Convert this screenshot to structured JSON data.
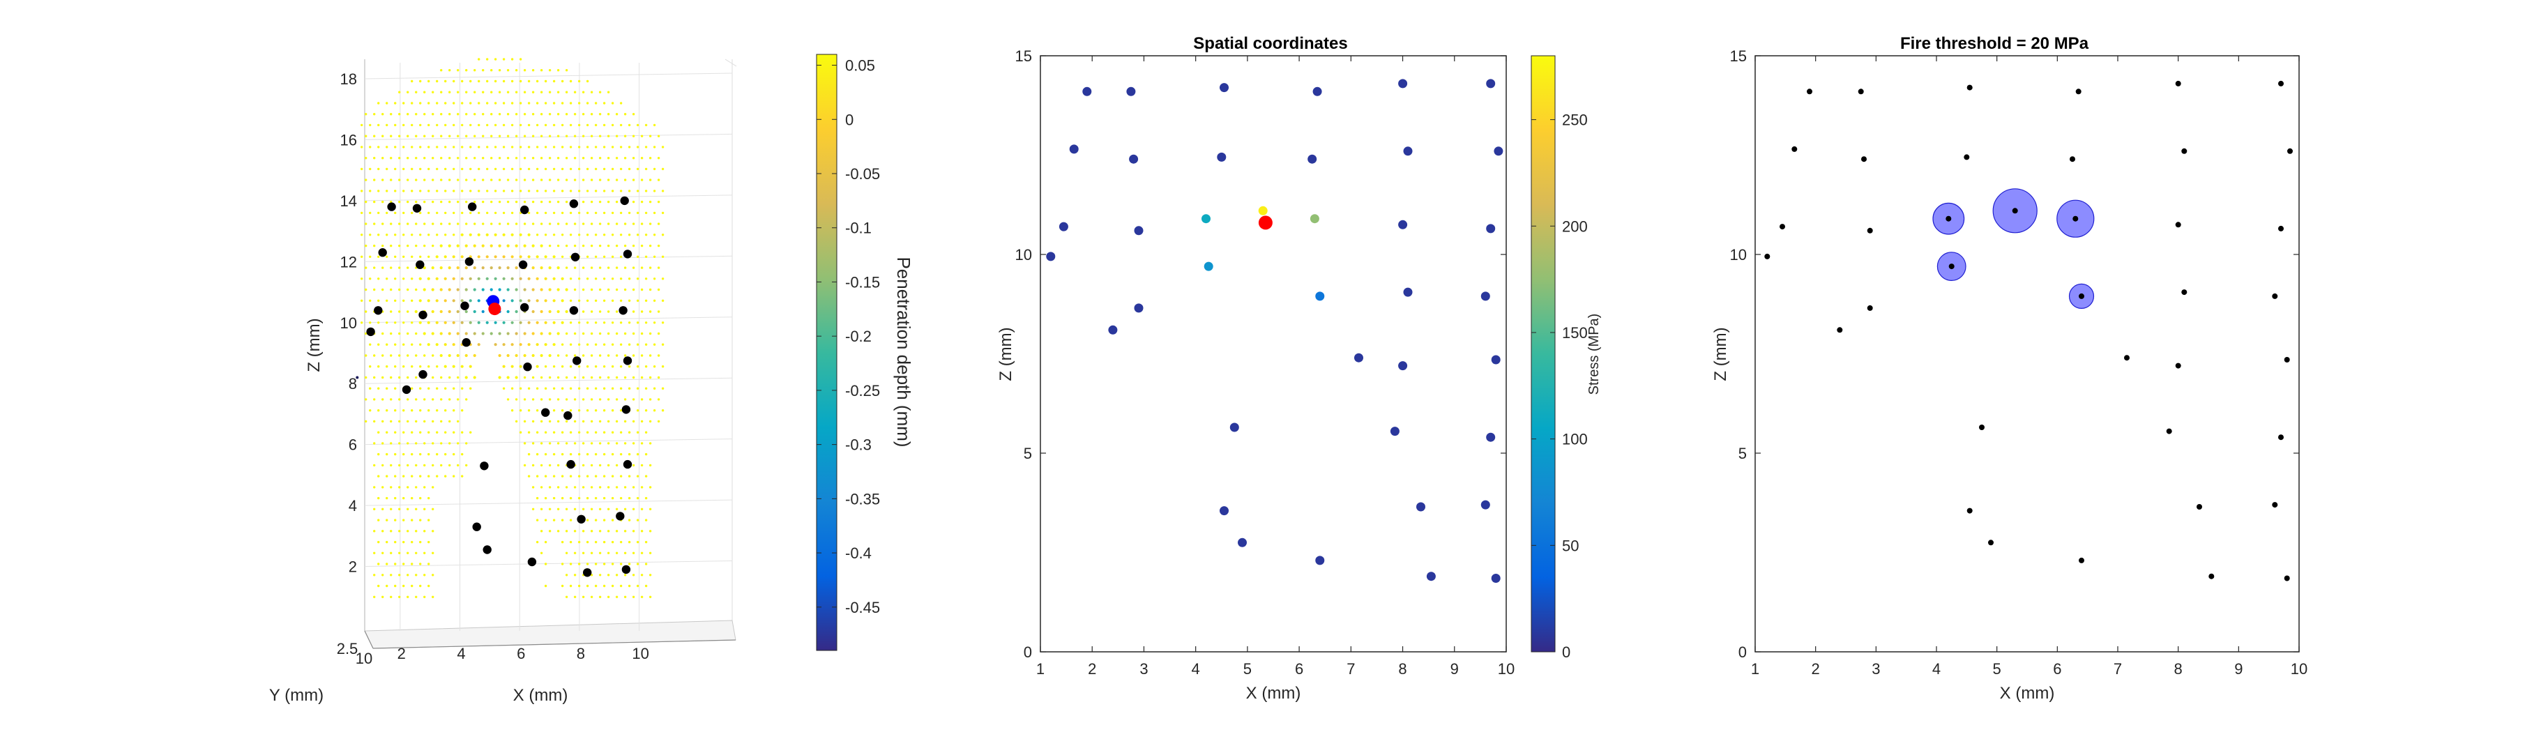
{
  "chart_data": [
    {
      "type": "scatter",
      "panel": "3d-penetration",
      "title": "",
      "xlabel": "X (mm)",
      "ylabel": "Y (mm)",
      "zlabel": "Z (mm)",
      "x_ticks": [
        "2",
        "4",
        "6",
        "8",
        "10"
      ],
      "y_ticks": [
        "2.5",
        "10"
      ],
      "z_ticks": [
        "2",
        "4",
        "6",
        "8",
        "10",
        "12",
        "14",
        "16",
        "18"
      ],
      "colorbar": {
        "label": "Penetration depth (mm)",
        "ticks": [
          "0.05",
          "0",
          "-0.05",
          "-0.1",
          "-0.15",
          "-0.2",
          "-0.25",
          "-0.3",
          "-0.35",
          "-0.4",
          "-0.45"
        ],
        "range": [
          -0.49,
          0.06
        ],
        "colormap": "parula"
      },
      "sensor_color": "#000000",
      "contact_markers": [
        {
          "color": "#0000ff",
          "x": 5.3,
          "z": 10.7
        },
        {
          "color": "#ff0000",
          "x": 5.35,
          "z": 10.45
        }
      ],
      "sensors": [
        {
          "x": 1.9,
          "z": 13.8
        },
        {
          "x": 2.75,
          "z": 13.75
        },
        {
          "x": 4.6,
          "z": 13.8
        },
        {
          "x": 6.35,
          "z": 13.7
        },
        {
          "x": 8.0,
          "z": 13.9
        },
        {
          "x": 9.7,
          "z": 14.0
        },
        {
          "x": 1.6,
          "z": 12.3
        },
        {
          "x": 2.85,
          "z": 11.9
        },
        {
          "x": 4.5,
          "z": 12.0
        },
        {
          "x": 6.3,
          "z": 11.9
        },
        {
          "x": 8.05,
          "z": 12.15
        },
        {
          "x": 9.8,
          "z": 12.25
        },
        {
          "x": 1.45,
          "z": 10.4
        },
        {
          "x": 2.95,
          "z": 10.25
        },
        {
          "x": 4.35,
          "z": 10.55
        },
        {
          "x": 6.35,
          "z": 10.5
        },
        {
          "x": 8.0,
          "z": 10.4
        },
        {
          "x": 9.65,
          "z": 10.4
        },
        {
          "x": 1.2,
          "z": 9.7
        },
        {
          "x": 4.4,
          "z": 9.35
        },
        {
          "x": 2.4,
          "z": 7.8
        },
        {
          "x": 2.95,
          "z": 8.3
        },
        {
          "x": 6.45,
          "z": 8.55
        },
        {
          "x": 8.1,
          "z": 8.75
        },
        {
          "x": 9.8,
          "z": 8.75
        },
        {
          "x": 7.05,
          "z": 7.05
        },
        {
          "x": 7.8,
          "z": 6.95
        },
        {
          "x": 9.75,
          "z": 7.15
        },
        {
          "x": 5.0,
          "z": 5.3
        },
        {
          "x": 7.9,
          "z": 5.35
        },
        {
          "x": 9.8,
          "z": 5.35
        },
        {
          "x": 8.25,
          "z": 3.55
        },
        {
          "x": 9.55,
          "z": 3.65
        },
        {
          "x": 4.75,
          "z": 3.3
        },
        {
          "x": 5.1,
          "z": 2.55
        },
        {
          "x": 6.6,
          "z": 2.15
        },
        {
          "x": 8.45,
          "z": 1.8
        },
        {
          "x": 9.75,
          "z": 1.9
        }
      ]
    },
    {
      "type": "scatter",
      "panel": "spatial-coordinates",
      "title": "Spatial coordinates",
      "xlabel": "X (mm)",
      "ylabel": "Z (mm)",
      "xlim": [
        1,
        10
      ],
      "ylim": [
        0,
        15
      ],
      "x_ticks": [
        1,
        2,
        3,
        4,
        5,
        6,
        7,
        8,
        9,
        10
      ],
      "y_ticks": [
        0,
        5,
        10,
        15
      ],
      "colorbar": {
        "label": "Stress (MPa)",
        "range": [
          0,
          280
        ],
        "ticks": [
          0,
          50,
          100,
          150,
          200,
          250
        ],
        "colormap": "parula"
      },
      "contact_point": {
        "x": 5.35,
        "y": 10.8,
        "color": "#ff0000"
      },
      "points": [
        {
          "x": 1.9,
          "y": 14.1,
          "stress": 8
        },
        {
          "x": 2.75,
          "y": 14.1,
          "stress": 8
        },
        {
          "x": 4.55,
          "y": 14.2,
          "stress": 8
        },
        {
          "x": 6.35,
          "y": 14.1,
          "stress": 8
        },
        {
          "x": 8.0,
          "y": 14.3,
          "stress": 8
        },
        {
          "x": 9.7,
          "y": 14.3,
          "stress": 8
        },
        {
          "x": 1.65,
          "y": 12.65,
          "stress": 8
        },
        {
          "x": 2.8,
          "y": 12.4,
          "stress": 8
        },
        {
          "x": 4.5,
          "y": 12.45,
          "stress": 8
        },
        {
          "x": 6.25,
          "y": 12.4,
          "stress": 8
        },
        {
          "x": 8.1,
          "y": 12.6,
          "stress": 8
        },
        {
          "x": 9.85,
          "y": 12.6,
          "stress": 8
        },
        {
          "x": 1.45,
          "y": 10.7,
          "stress": 8
        },
        {
          "x": 2.9,
          "y": 10.6,
          "stress": 8
        },
        {
          "x": 4.2,
          "y": 10.9,
          "stress": 110
        },
        {
          "x": 5.3,
          "y": 11.1,
          "stress": 270
        },
        {
          "x": 6.3,
          "y": 10.9,
          "stress": 175
        },
        {
          "x": 8.0,
          "y": 10.75,
          "stress": 8
        },
        {
          "x": 9.7,
          "y": 10.65,
          "stress": 8
        },
        {
          "x": 1.2,
          "y": 9.95,
          "stress": 8
        },
        {
          "x": 4.25,
          "y": 9.7,
          "stress": 85
        },
        {
          "x": 6.4,
          "y": 8.95,
          "stress": 55
        },
        {
          "x": 8.1,
          "y": 9.05,
          "stress": 8
        },
        {
          "x": 9.6,
          "y": 8.95,
          "stress": 8
        },
        {
          "x": 2.4,
          "y": 8.1,
          "stress": 8
        },
        {
          "x": 2.9,
          "y": 8.65,
          "stress": 8
        },
        {
          "x": 7.15,
          "y": 7.4,
          "stress": 8
        },
        {
          "x": 8.0,
          "y": 7.2,
          "stress": 8
        },
        {
          "x": 9.8,
          "y": 7.35,
          "stress": 8
        },
        {
          "x": 4.75,
          "y": 5.65,
          "stress": 8
        },
        {
          "x": 7.85,
          "y": 5.55,
          "stress": 8
        },
        {
          "x": 9.7,
          "y": 5.4,
          "stress": 8
        },
        {
          "x": 4.55,
          "y": 3.55,
          "stress": 8
        },
        {
          "x": 8.35,
          "y": 3.65,
          "stress": 8
        },
        {
          "x": 9.6,
          "y": 3.7,
          "stress": 8
        },
        {
          "x": 4.9,
          "y": 2.75,
          "stress": 8
        },
        {
          "x": 6.4,
          "y": 2.3,
          "stress": 8
        },
        {
          "x": 8.55,
          "y": 1.9,
          "stress": 8
        },
        {
          "x": 9.8,
          "y": 1.85,
          "stress": 8
        }
      ]
    },
    {
      "type": "scatter",
      "panel": "fire-threshold",
      "title": "Fire threshold = 20 MPa",
      "xlabel": "X (mm)",
      "ylabel": "Z (mm)",
      "xlim": [
        1,
        10
      ],
      "ylim": [
        0,
        15
      ],
      "x_ticks": [
        1,
        2,
        3,
        4,
        5,
        6,
        7,
        8,
        9,
        10
      ],
      "y_ticks": [
        0,
        5,
        10,
        15
      ],
      "fired_color": "#4040ff",
      "points": [
        {
          "x": 1.9,
          "y": 14.1,
          "stress": 8
        },
        {
          "x": 2.75,
          "y": 14.1,
          "stress": 8
        },
        {
          "x": 4.55,
          "y": 14.2,
          "stress": 8
        },
        {
          "x": 6.35,
          "y": 14.1,
          "stress": 8
        },
        {
          "x": 8.0,
          "y": 14.3,
          "stress": 8
        },
        {
          "x": 9.7,
          "y": 14.3,
          "stress": 8
        },
        {
          "x": 1.65,
          "y": 12.65,
          "stress": 8
        },
        {
          "x": 2.8,
          "y": 12.4,
          "stress": 8
        },
        {
          "x": 4.5,
          "y": 12.45,
          "stress": 8
        },
        {
          "x": 6.25,
          "y": 12.4,
          "stress": 8
        },
        {
          "x": 8.1,
          "y": 12.6,
          "stress": 8
        },
        {
          "x": 9.85,
          "y": 12.6,
          "stress": 8
        },
        {
          "x": 1.45,
          "y": 10.7,
          "stress": 8
        },
        {
          "x": 2.9,
          "y": 10.6,
          "stress": 8
        },
        {
          "x": 4.2,
          "y": 10.9,
          "stress": 110
        },
        {
          "x": 5.3,
          "y": 11.1,
          "stress": 270
        },
        {
          "x": 6.3,
          "y": 10.9,
          "stress": 175
        },
        {
          "x": 8.0,
          "y": 10.75,
          "stress": 8
        },
        {
          "x": 9.7,
          "y": 10.65,
          "stress": 8
        },
        {
          "x": 1.2,
          "y": 9.95,
          "stress": 8
        },
        {
          "x": 4.25,
          "y": 9.7,
          "stress": 85
        },
        {
          "x": 6.4,
          "y": 8.95,
          "stress": 55
        },
        {
          "x": 8.1,
          "y": 9.05,
          "stress": 8
        },
        {
          "x": 9.6,
          "y": 8.95,
          "stress": 8
        },
        {
          "x": 2.4,
          "y": 8.1,
          "stress": 8
        },
        {
          "x": 2.9,
          "y": 8.65,
          "stress": 8
        },
        {
          "x": 7.15,
          "y": 7.4,
          "stress": 8
        },
        {
          "x": 8.0,
          "y": 7.2,
          "stress": 8
        },
        {
          "x": 9.8,
          "y": 7.35,
          "stress": 8
        },
        {
          "x": 4.75,
          "y": 5.65,
          "stress": 8
        },
        {
          "x": 7.85,
          "y": 5.55,
          "stress": 8
        },
        {
          "x": 9.7,
          "y": 5.4,
          "stress": 8
        },
        {
          "x": 4.55,
          "y": 3.55,
          "stress": 8
        },
        {
          "x": 8.35,
          "y": 3.65,
          "stress": 8
        },
        {
          "x": 9.6,
          "y": 3.7,
          "stress": 8
        },
        {
          "x": 4.9,
          "y": 2.75,
          "stress": 8
        },
        {
          "x": 6.4,
          "y": 2.3,
          "stress": 8
        },
        {
          "x": 8.55,
          "y": 1.9,
          "stress": 8
        },
        {
          "x": 9.8,
          "y": 1.85,
          "stress": 8
        }
      ]
    }
  ]
}
